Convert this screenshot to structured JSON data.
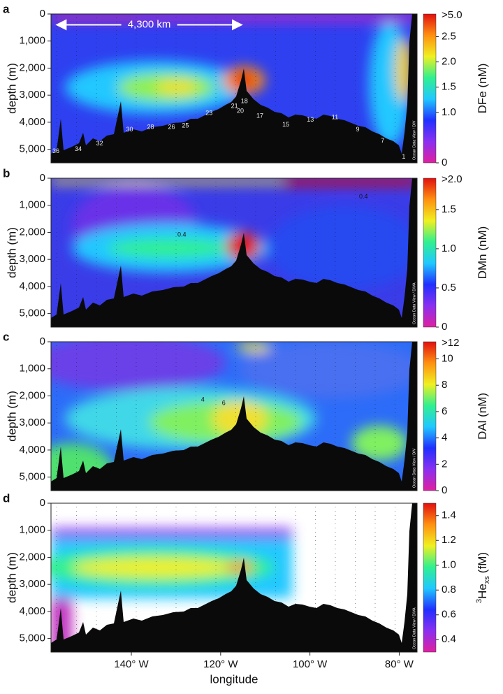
{
  "chart_data": [
    {
      "type": "heatmap",
      "panel": "a",
      "ylabel": "depth (m)",
      "xlim": [
        -158,
        -76
      ],
      "ylim": [
        0,
        5500
      ],
      "yticks": [
        0,
        {
          "value": 1000,
          "label": "1,000"
        },
        {
          "value": 2000,
          "label": "2,000"
        },
        {
          "value": 3000,
          "label": "3,000"
        },
        {
          "value": 4000,
          "label": "4,000"
        },
        {
          "value": 5000,
          "label": "5,000"
        }
      ],
      "colorbar": {
        "label": "DFe (nM)",
        "lim": [
          0,
          2.95
        ],
        "ticks": [
          0,
          {
            "value": 1,
            "label": "1.0"
          },
          1.5,
          {
            "value": 2,
            "label": "2.0"
          },
          2.5
        ],
        "over_label": ">5.0",
        "colors": [
          "#e020a0",
          "#8a30f0",
          "#2030ff",
          "#20c8ff",
          "#30f090",
          "#f0f020",
          "#ff9010",
          "#e01010"
        ]
      },
      "credit": "Ocean Data View / DIV",
      "span": {
        "label": "4,300 km",
        "x": [
          -157,
          -115
        ],
        "y": 400
      },
      "annotations": [
        {
          "text": "36",
          "x": -156.9,
          "y": 5080
        },
        {
          "text": "34",
          "x": -151.9,
          "y": 5000
        },
        {
          "text": "32",
          "x": -147.1,
          "y": 4790
        },
        {
          "text": "30",
          "x": -140.4,
          "y": 4280
        },
        {
          "text": "28",
          "x": -135.7,
          "y": 4180
        },
        {
          "text": "26",
          "x": -131.0,
          "y": 4180
        },
        {
          "text": "25",
          "x": -127.9,
          "y": 4130
        },
        {
          "text": "23",
          "x": -122.6,
          "y": 3670
        },
        {
          "text": "21",
          "x": -116.9,
          "y": 3410
        },
        {
          "text": "18",
          "x": -114.7,
          "y": 3230
        },
        {
          "text": "20",
          "x": -115.6,
          "y": 3590
        },
        {
          "text": "17",
          "x": -111.2,
          "y": 3770
        },
        {
          "text": "15",
          "x": -105.4,
          "y": 4100
        },
        {
          "text": "13",
          "x": -99.9,
          "y": 3920
        },
        {
          "text": "11",
          "x": -94.4,
          "y": 3820
        },
        {
          "text": "9",
          "x": -89.3,
          "y": 4280
        },
        {
          "text": "7",
          "x": -83.7,
          "y": 4690
        },
        {
          "text": "1",
          "x": -79.0,
          "y": 5280
        }
      ]
    },
    {
      "type": "heatmap",
      "panel": "b",
      "ylabel": "depth (m)",
      "xlim": [
        -158,
        -76
      ],
      "ylim": [
        0,
        5500
      ],
      "yticks": [
        0,
        {
          "value": 1000,
          "label": "1,000"
        },
        {
          "value": 2000,
          "label": "2,000"
        },
        {
          "value": 3000,
          "label": "3,000"
        },
        {
          "value": 4000,
          "label": "4,000"
        },
        {
          "value": 5000,
          "label": "5,000"
        }
      ],
      "colorbar": {
        "label": "DMn (nM)",
        "lim": [
          0,
          1.9
        ],
        "ticks": [
          0,
          0.5,
          {
            "value": 1,
            "label": "1.0"
          },
          1.5
        ],
        "over_label": ">2.0",
        "colors": [
          "#e020a0",
          "#8a30f0",
          "#2030ff",
          "#20c8ff",
          "#30f090",
          "#f0f020",
          "#ff9010",
          "#e01010"
        ]
      },
      "credit": "Ocean Data View / DIVA",
      "annotations": [
        {
          "text": "0.4",
          "x": -88.0,
          "y": 690
        },
        {
          "text": "0.4",
          "x": -128.7,
          "y": 2100
        }
      ]
    },
    {
      "type": "heatmap",
      "panel": "c",
      "ylabel": "depth (m)",
      "xlim": [
        -158,
        -76
      ],
      "ylim": [
        0,
        5500
      ],
      "yticks": [
        0,
        {
          "value": 1000,
          "label": "1,000"
        },
        {
          "value": 2000,
          "label": "2,000"
        },
        {
          "value": 3000,
          "label": "3,000"
        },
        {
          "value": 4000,
          "label": "4,000"
        },
        {
          "value": 5000,
          "label": "5,000"
        }
      ],
      "colorbar": {
        "label": "DAl (nM)",
        "lim": [
          0,
          11.3
        ],
        "ticks": [
          0,
          2,
          4,
          6,
          8,
          10
        ],
        "over_label": ">12",
        "colors": [
          "#e020a0",
          "#8a30f0",
          "#2030ff",
          "#20c8ff",
          "#30f090",
          "#f0f020",
          "#ff9010",
          "#e01010"
        ]
      },
      "credit": "Ocean Data View / DIV",
      "annotations": [
        {
          "text": "4",
          "x": -124.0,
          "y": 2150
        },
        {
          "text": "6",
          "x": -119.3,
          "y": 2280
        }
      ]
    },
    {
      "type": "heatmap",
      "panel": "d",
      "ylabel": "depth (m)",
      "xlabel": "longitude",
      "xlim": [
        -158,
        -76
      ],
      "ylim": [
        0,
        5500
      ],
      "xticks": [
        {
          "value": -140,
          "label": "140° W"
        },
        {
          "value": -120,
          "label": "120° W"
        },
        {
          "value": -100,
          "label": "100° W"
        },
        {
          "value": -80,
          "label": "80° W"
        }
      ],
      "yticks": [
        0,
        {
          "value": 1000,
          "label": "1,000"
        },
        {
          "value": 2000,
          "label": "2,000"
        },
        {
          "value": 3000,
          "label": "3,000"
        },
        {
          "value": 4000,
          "label": "4,000"
        },
        {
          "value": 5000,
          "label": "5,000"
        }
      ],
      "colorbar": {
        "label_sup": "3",
        "label": "He",
        "label_sub": "xs",
        "label_unit": "(fM)",
        "lim": [
          0.3,
          1.5
        ],
        "ticks": [
          0.4,
          0.6,
          0.8,
          {
            "value": 1,
            "label": "1.0"
          },
          1.2,
          1.4
        ],
        "colors": [
          "#e020a0",
          "#8a30f0",
          "#2030ff",
          "#20c8ff",
          "#30f090",
          "#f0f020",
          "#ff9010",
          "#e01010"
        ]
      },
      "credit": "Ocean Data View / DIVA"
    }
  ]
}
